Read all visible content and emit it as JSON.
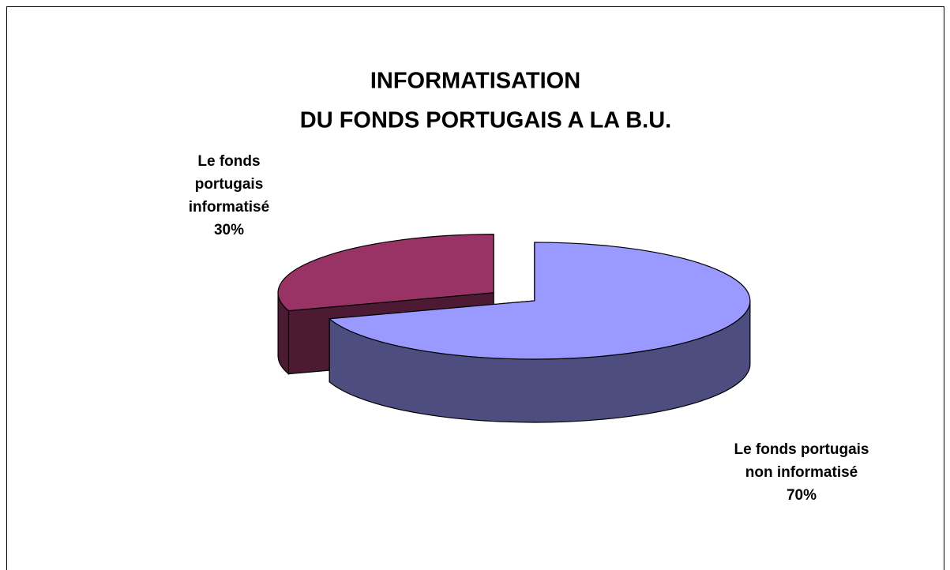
{
  "chart_data": {
    "type": "pie3d",
    "title": [
      "INFORMATISATION",
      "DU FONDS PORTUGAIS A LA B.U."
    ],
    "categories": [
      "Le fonds portugais non informatisé",
      "Le fonds portugais informatisé"
    ],
    "values": [
      70,
      30
    ],
    "value_labels": [
      "70%",
      "30%"
    ],
    "colors": [
      "#9999ff",
      "#993366"
    ],
    "side_colors": [
      "#4d4d80",
      "#4d1a33"
    ]
  }
}
